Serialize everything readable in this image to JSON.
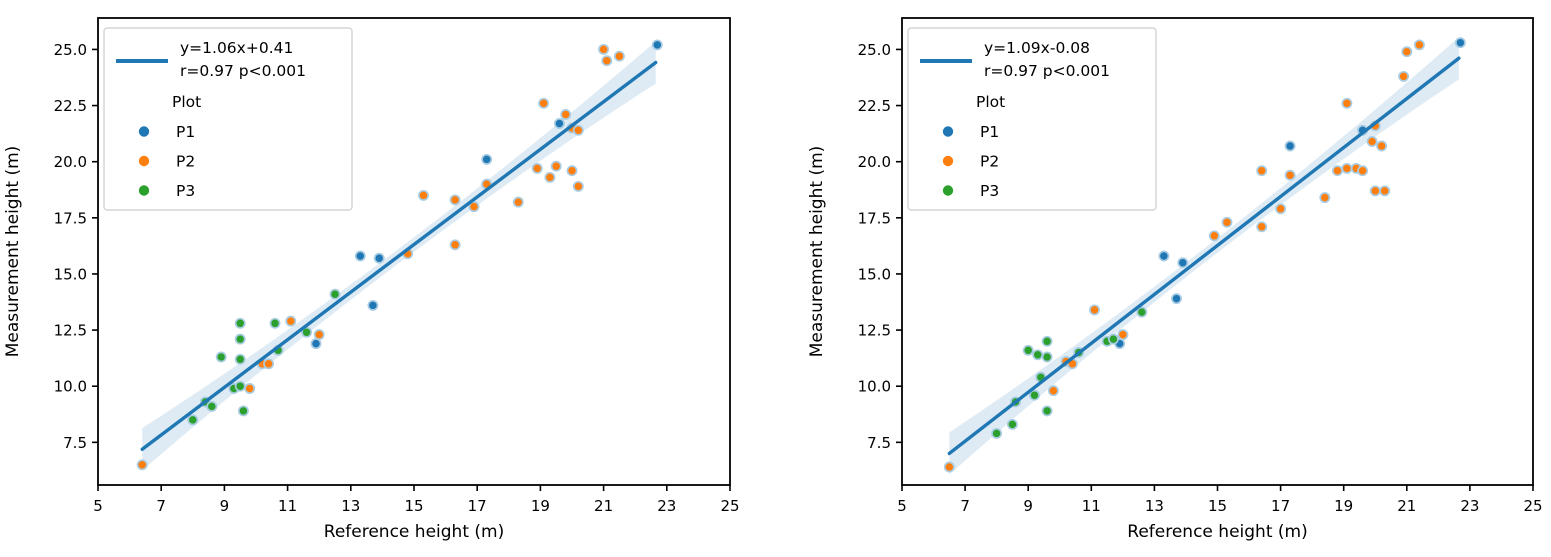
{
  "figure": {
    "background": "#ffffff"
  },
  "style": {
    "axis_color": "#000000",
    "tick_label_size": 15,
    "axis_label_size": 17,
    "legend_font_size": 15.5,
    "legend_border": "#cccccc",
    "line_color": "#1f77b4",
    "band_color": "#1f77b4",
    "band_opacity": 0.15,
    "marker_edge": "#a9cce3",
    "series_colors": {
      "P1": "#1f77b4",
      "P2": "#ff7f0e",
      "P3": "#2ca02c"
    }
  },
  "chart_data": [
    {
      "type": "scatter",
      "title": "",
      "xlabel": "Reference height (m)",
      "ylabel": "Measurement height (m)",
      "xlim": [
        5,
        25
      ],
      "ylim": [
        5.6,
        26.4
      ],
      "xticks": [
        5,
        7,
        9,
        11,
        13,
        15,
        17,
        19,
        21,
        23,
        25
      ],
      "yticks": [
        7.5,
        10.0,
        12.5,
        15.0,
        17.5,
        20.0,
        22.5,
        25.0
      ],
      "ytick_labels": [
        "7.5",
        "10.0",
        "12.5",
        "15.0",
        "17.5",
        "20.0",
        "22.5",
        "25.0"
      ],
      "grid": false,
      "legend": {
        "position": "upper left",
        "fit_label_lines": [
          "y=1.06x+0.41",
          "r=0.97 p<0.001"
        ],
        "title": "Plot",
        "entries": [
          "P1",
          "P2",
          "P3"
        ]
      },
      "regression": {
        "slope": 1.06,
        "intercept": 0.41,
        "r": 0.97,
        "p": "<0.001",
        "x_start": 6.4,
        "x_end": 22.65
      },
      "series": [
        {
          "name": "P1",
          "color": "#1f77b4",
          "points": [
            [
              11.9,
              11.9
            ],
            [
              13.3,
              15.8
            ],
            [
              13.9,
              15.7
            ],
            [
              13.7,
              13.6
            ],
            [
              17.3,
              20.1
            ],
            [
              19.6,
              21.7
            ],
            [
              22.7,
              25.2
            ]
          ]
        },
        {
          "name": "P2",
          "color": "#ff7f0e",
          "points": [
            [
              6.4,
              6.5
            ],
            [
              9.8,
              9.9
            ],
            [
              10.2,
              11.0
            ],
            [
              10.4,
              11.0
            ],
            [
              11.1,
              12.9
            ],
            [
              12.0,
              12.3
            ],
            [
              14.8,
              15.9
            ],
            [
              15.3,
              18.5
            ],
            [
              16.3,
              18.3
            ],
            [
              16.3,
              16.3
            ],
            [
              16.9,
              18.0
            ],
            [
              17.3,
              19.0
            ],
            [
              18.3,
              18.2
            ],
            [
              18.9,
              19.7
            ],
            [
              19.3,
              19.3
            ],
            [
              19.5,
              19.8
            ],
            [
              20.0,
              19.6
            ],
            [
              20.2,
              18.9
            ],
            [
              19.1,
              22.6
            ],
            [
              19.8,
              22.1
            ],
            [
              20.0,
              21.5
            ],
            [
              20.2,
              21.4
            ],
            [
              21.0,
              25.0
            ],
            [
              21.1,
              24.5
            ],
            [
              21.5,
              24.7
            ]
          ]
        },
        {
          "name": "P3",
          "color": "#2ca02c",
          "points": [
            [
              8.0,
              8.5
            ],
            [
              8.4,
              9.3
            ],
            [
              8.6,
              9.1
            ],
            [
              8.9,
              11.3
            ],
            [
              9.3,
              9.9
            ],
            [
              9.5,
              10.0
            ],
            [
              9.5,
              11.2
            ],
            [
              9.5,
              12.1
            ],
            [
              9.5,
              12.8
            ],
            [
              9.6,
              8.9
            ],
            [
              10.6,
              12.8
            ],
            [
              10.7,
              11.6
            ],
            [
              11.6,
              12.4
            ],
            [
              12.5,
              14.1
            ]
          ]
        }
      ]
    },
    {
      "type": "scatter",
      "title": "",
      "xlabel": "Reference height (m)",
      "ylabel": "Measurement height (m)",
      "xlim": [
        5,
        25
      ],
      "ylim": [
        5.6,
        26.4
      ],
      "xticks": [
        5,
        7,
        9,
        11,
        13,
        15,
        17,
        19,
        21,
        23,
        25
      ],
      "yticks": [
        7.5,
        10.0,
        12.5,
        15.0,
        17.5,
        20.0,
        22.5,
        25.0
      ],
      "ytick_labels": [
        "7.5",
        "10.0",
        "12.5",
        "15.0",
        "17.5",
        "20.0",
        "22.5",
        "25.0"
      ],
      "grid": false,
      "legend": {
        "position": "upper left",
        "fit_label_lines": [
          "y=1.09x-0.08",
          "r=0.97 p<0.001"
        ],
        "title": "Plot",
        "entries": [
          "P1",
          "P2",
          "P3"
        ]
      },
      "regression": {
        "slope": 1.09,
        "intercept": -0.08,
        "r": 0.97,
        "p": "<0.001",
        "x_start": 6.5,
        "x_end": 22.65
      },
      "series": [
        {
          "name": "P1",
          "color": "#1f77b4",
          "points": [
            [
              11.9,
              11.9
            ],
            [
              13.3,
              15.8
            ],
            [
              13.9,
              15.5
            ],
            [
              13.7,
              13.9
            ],
            [
              17.3,
              20.7
            ],
            [
              19.6,
              21.4
            ],
            [
              22.7,
              25.3
            ]
          ]
        },
        {
          "name": "P2",
          "color": "#ff7f0e",
          "points": [
            [
              6.5,
              6.4
            ],
            [
              9.8,
              9.8
            ],
            [
              10.2,
              11.1
            ],
            [
              10.4,
              11.0
            ],
            [
              11.1,
              13.4
            ],
            [
              12.0,
              12.3
            ],
            [
              14.9,
              16.7
            ],
            [
              15.3,
              17.3
            ],
            [
              16.4,
              17.1
            ],
            [
              16.4,
              19.6
            ],
            [
              17.0,
              17.9
            ],
            [
              17.3,
              19.4
            ],
            [
              18.4,
              18.4
            ],
            [
              18.8,
              19.6
            ],
            [
              19.1,
              19.7
            ],
            [
              19.4,
              19.7
            ],
            [
              19.6,
              19.6
            ],
            [
              20.0,
              18.7
            ],
            [
              20.3,
              18.7
            ],
            [
              19.1,
              22.6
            ],
            [
              19.9,
              20.9
            ],
            [
              20.0,
              21.6
            ],
            [
              20.2,
              20.7
            ],
            [
              20.9,
              23.8
            ],
            [
              21.0,
              24.9
            ],
            [
              21.4,
              25.2
            ]
          ]
        },
        {
          "name": "P3",
          "color": "#2ca02c",
          "points": [
            [
              8.0,
              7.9
            ],
            [
              8.5,
              8.3
            ],
            [
              8.6,
              9.3
            ],
            [
              9.0,
              11.6
            ],
            [
              9.2,
              9.6
            ],
            [
              9.3,
              11.4
            ],
            [
              9.4,
              10.4
            ],
            [
              9.6,
              8.9
            ],
            [
              9.6,
              11.3
            ],
            [
              9.6,
              12.0
            ],
            [
              10.6,
              11.5
            ],
            [
              11.5,
              12.0
            ],
            [
              11.7,
              12.1
            ],
            [
              12.6,
              13.3
            ]
          ]
        }
      ]
    }
  ]
}
